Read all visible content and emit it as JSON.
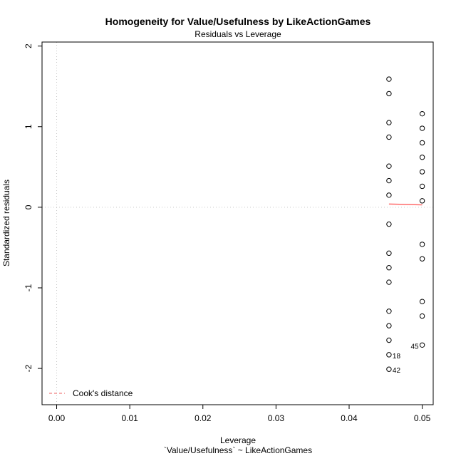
{
  "chart_data": {
    "type": "scatter",
    "title": "Homogeneity for Value/Usefulness by LikeActionGames",
    "subtitle": "Residuals vs Leverage",
    "xlabel": "Leverage",
    "xlabel2": "`Value/Usefulness` ~ LikeActionGames",
    "ylabel": "Standardized residuals",
    "xlim": [
      -0.002,
      0.0515
    ],
    "ylim": [
      -2.45,
      2.05
    ],
    "x_ticks": [
      "0.00",
      "0.01",
      "0.02",
      "0.03",
      "0.04",
      "0.05"
    ],
    "x_tick_values": [
      0,
      0.01,
      0.02,
      0.03,
      0.04,
      0.05
    ],
    "y_ticks": [
      "-2",
      "-1",
      "0",
      "1",
      "2"
    ],
    "y_tick_values": [
      -2,
      -1,
      0,
      1,
      2
    ],
    "grid": false,
    "reference_lines": {
      "x": 0,
      "y": 0
    },
    "points": [
      {
        "x": 0.04545,
        "y": 1.59
      },
      {
        "x": 0.04545,
        "y": 1.41
      },
      {
        "x": 0.04545,
        "y": 1.05
      },
      {
        "x": 0.04545,
        "y": 0.87
      },
      {
        "x": 0.04545,
        "y": 0.51
      },
      {
        "x": 0.04545,
        "y": 0.33
      },
      {
        "x": 0.04545,
        "y": 0.15
      },
      {
        "x": 0.04545,
        "y": -0.21
      },
      {
        "x": 0.04545,
        "y": -0.57
      },
      {
        "x": 0.04545,
        "y": -0.75
      },
      {
        "x": 0.04545,
        "y": -0.93
      },
      {
        "x": 0.04545,
        "y": -1.29
      },
      {
        "x": 0.04545,
        "y": -1.47
      },
      {
        "x": 0.04545,
        "y": -1.65
      },
      {
        "x": 0.04545,
        "y": -1.83
      },
      {
        "x": 0.04545,
        "y": -2.01
      },
      {
        "x": 0.05,
        "y": 1.16
      },
      {
        "x": 0.05,
        "y": 0.98
      },
      {
        "x": 0.05,
        "y": 0.8
      },
      {
        "x": 0.05,
        "y": 0.62
      },
      {
        "x": 0.05,
        "y": 0.44
      },
      {
        "x": 0.05,
        "y": 0.26
      },
      {
        "x": 0.05,
        "y": 0.08
      },
      {
        "x": 0.05,
        "y": -0.46
      },
      {
        "x": 0.05,
        "y": -0.64
      },
      {
        "x": 0.05,
        "y": -1.17
      },
      {
        "x": 0.05,
        "y": -1.35
      },
      {
        "x": 0.05,
        "y": -1.71
      }
    ],
    "point_labels": [
      {
        "text": "18",
        "x": 0.04545,
        "y": -1.83,
        "side": "right"
      },
      {
        "text": "42",
        "x": 0.04545,
        "y": -2.01,
        "side": "right"
      },
      {
        "text": "45",
        "x": 0.05,
        "y": -1.71,
        "side": "left"
      }
    ],
    "smooth_line": {
      "color": "#ff6b6b",
      "x": [
        0.04545,
        0.05
      ],
      "y": [
        0.04,
        0.03
      ]
    },
    "legend": {
      "label": "Cook's distance",
      "color": "#f08080",
      "style": "dashed",
      "position": "bottom-left"
    }
  }
}
